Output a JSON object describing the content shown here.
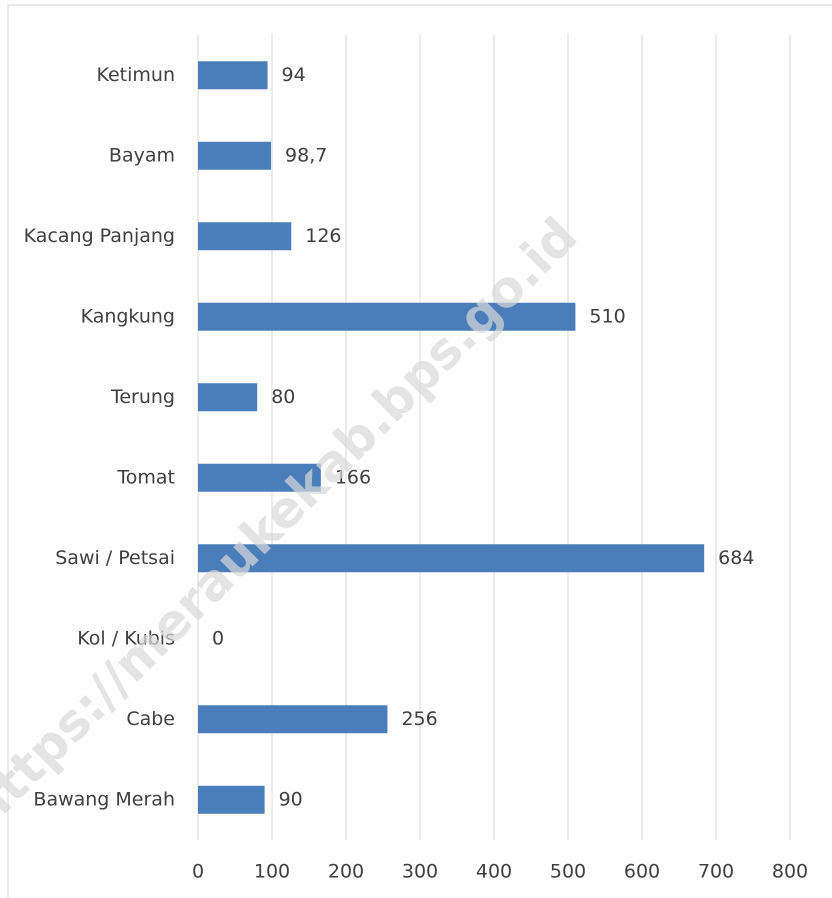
{
  "chart_data": {
    "type": "bar",
    "orientation": "horizontal",
    "categories": [
      "Ketimun",
      "Bayam",
      "Kacang Panjang",
      "Kangkung",
      "Terung",
      "Tomat",
      "Sawi / Petsai",
      "Kol / Kubis",
      "Cabe",
      "Bawang Merah"
    ],
    "values": [
      94,
      98.7,
      126,
      510,
      80,
      166,
      684,
      0,
      256,
      90
    ],
    "value_labels": [
      "94",
      "98,7",
      "126",
      "510",
      "80",
      "166",
      "684",
      "0",
      "256",
      "90"
    ],
    "color": "#4a7ebb",
    "xlim": [
      0,
      800
    ],
    "xticks": [
      0,
      100,
      200,
      300,
      400,
      500,
      600,
      700,
      800
    ],
    "grid": true,
    "watermark": "https://meraukekab.bps.go.id"
  }
}
